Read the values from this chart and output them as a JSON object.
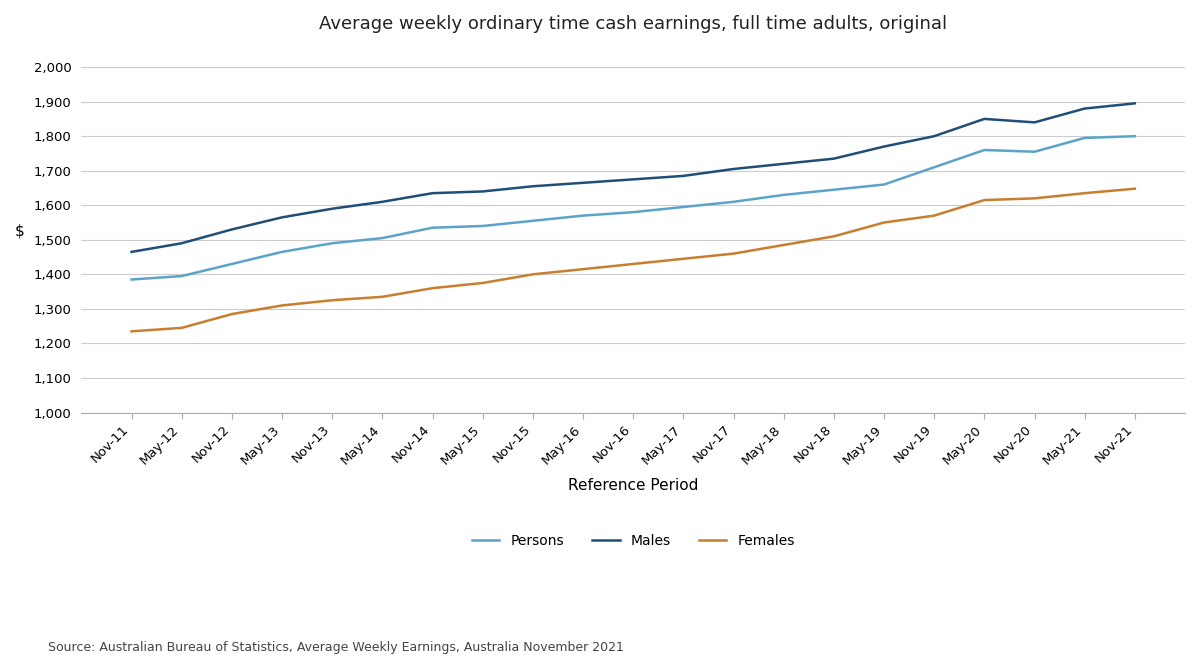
{
  "title": "Average weekly ordinary time cash earnings, full time adults, original",
  "xlabel": "Reference Period",
  "ylabel": "$",
  "source": "Source: Australian Bureau of Statistics, Average Weekly Earnings, Australia November 2021",
  "x_labels": [
    "Nov-11",
    "May-12",
    "Nov-12",
    "May-13",
    "Nov-13",
    "May-14",
    "Nov-14",
    "May-15",
    "Nov-15",
    "May-16",
    "Nov-16",
    "May-17",
    "Nov-17",
    "May-18",
    "Nov-18",
    "May-19",
    "Nov-19",
    "May-20",
    "Nov-20",
    "May-21",
    "Nov-21"
  ],
  "persons": [
    1385,
    1395,
    1430,
    1465,
    1490,
    1505,
    1535,
    1540,
    1555,
    1570,
    1580,
    1595,
    1610,
    1630,
    1645,
    1660,
    1710,
    1760,
    1755,
    1795,
    1800
  ],
  "males": [
    1465,
    1490,
    1530,
    1565,
    1590,
    1610,
    1635,
    1640,
    1655,
    1665,
    1675,
    1685,
    1705,
    1720,
    1735,
    1770,
    1800,
    1850,
    1840,
    1880,
    1895
  ],
  "females": [
    1235,
    1245,
    1285,
    1310,
    1325,
    1335,
    1360,
    1375,
    1400,
    1415,
    1430,
    1445,
    1460,
    1485,
    1510,
    1550,
    1570,
    1615,
    1620,
    1635,
    1648
  ],
  "persons_color": "#5BA3C9",
  "males_color": "#1F4E79",
  "females_color": "#C87D2F",
  "ylim": [
    1000,
    2050
  ],
  "yticks": [
    1000,
    1100,
    1200,
    1300,
    1400,
    1500,
    1600,
    1700,
    1800,
    1900,
    2000
  ],
  "background_color": "#FFFFFF",
  "grid_color": "#CCCCCC",
  "title_fontsize": 13,
  "axis_label_fontsize": 11,
  "tick_fontsize": 9.5,
  "legend_fontsize": 10,
  "source_fontsize": 9,
  "line_width": 1.8
}
